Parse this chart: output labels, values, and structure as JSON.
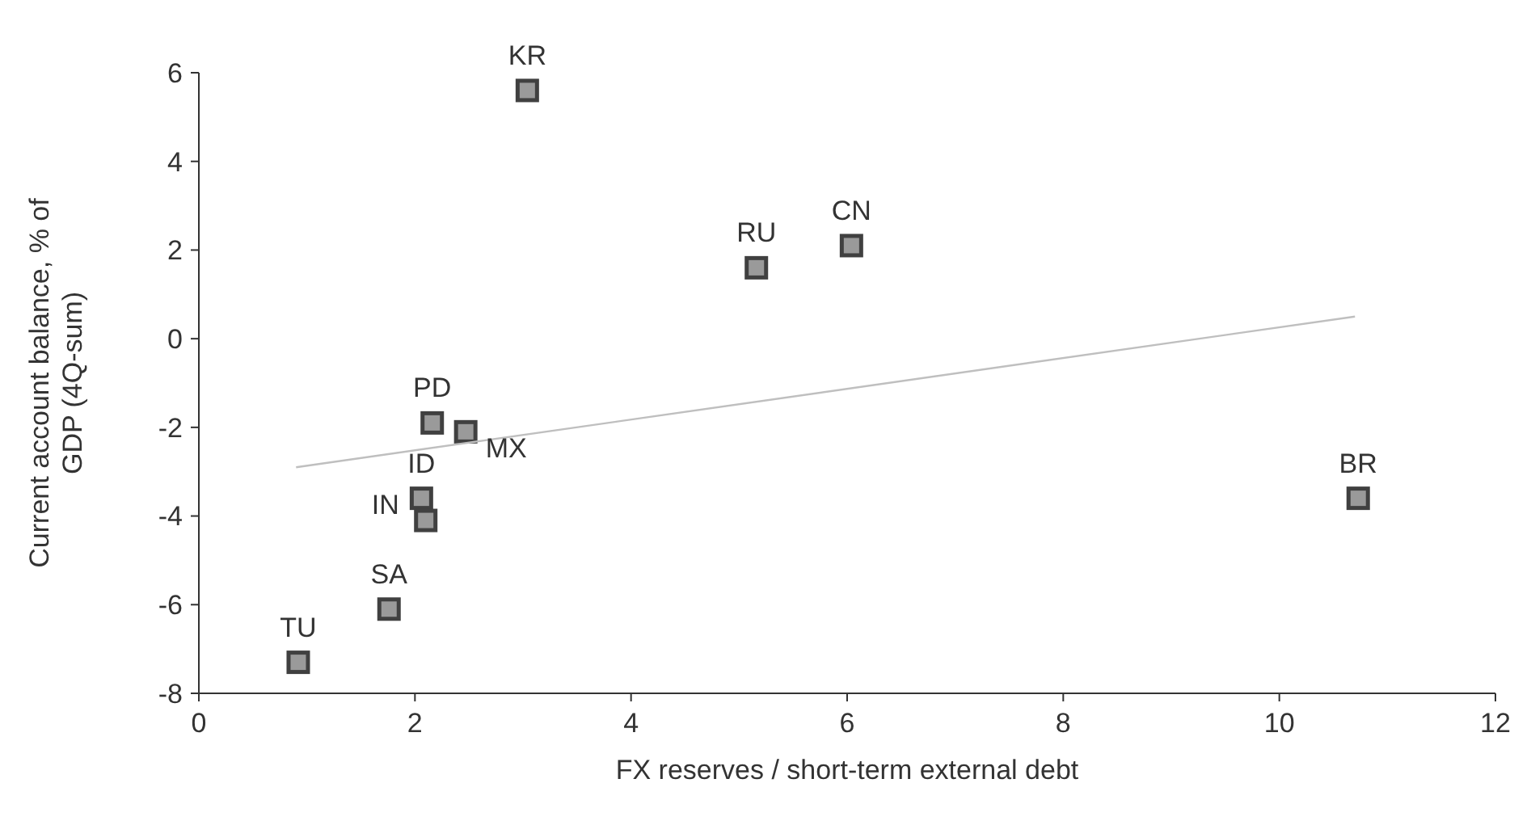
{
  "chart_data": {
    "type": "scatter",
    "xlabel": "FX reserves / short-term external debt",
    "ylabel": "Current account balance, % of GDP (4Q-sum)",
    "x": [
      3.04,
      6.04,
      5.16,
      10.73,
      2.16,
      2.47,
      2.06,
      2.1,
      1.76,
      0.92
    ],
    "series": [
      {
        "color": "#404040",
        "marker": "square",
        "values": [
          5.6,
          2.1,
          1.6,
          -3.6,
          -1.9,
          -2.1,
          -3.6,
          -4.1,
          -6.1,
          -7.3
        ]
      },
      {
        "type": "line",
        "color": "#bfbfbf",
        "x": [
          0.9,
          10.7
        ],
        "values": [
          -2.9,
          0.5
        ]
      }
    ],
    "annotations": [
      {
        "text": "KR",
        "x": 3.04,
        "y": 5.6
      },
      {
        "text": "CN",
        "x": 6.04,
        "y": 2.1
      },
      {
        "text": "RU",
        "x": 5.16,
        "y": 1.6
      },
      {
        "text": "BR",
        "x": 10.73,
        "y": -3.6
      },
      {
        "text": "PD",
        "x": 2.16,
        "y": -1.9
      },
      {
        "text": "MX",
        "x": 2.47,
        "y": -2.1
      },
      {
        "text": "ID",
        "x": 2.06,
        "y": -3.6
      },
      {
        "text": "IN",
        "x": 2.1,
        "y": -4.1
      },
      {
        "text": "SA",
        "x": 1.76,
        "y": -6.1
      },
      {
        "text": "TU",
        "x": 0.92,
        "y": -7.3
      }
    ],
    "xlim": [
      0,
      12
    ],
    "xticks": [
      0,
      2,
      4,
      6,
      8,
      10,
      12
    ],
    "ylim": [
      -8,
      6
    ],
    "yticks": [
      -8,
      -6,
      -4,
      -2,
      0,
      2,
      4,
      6
    ],
    "grid": false
  }
}
